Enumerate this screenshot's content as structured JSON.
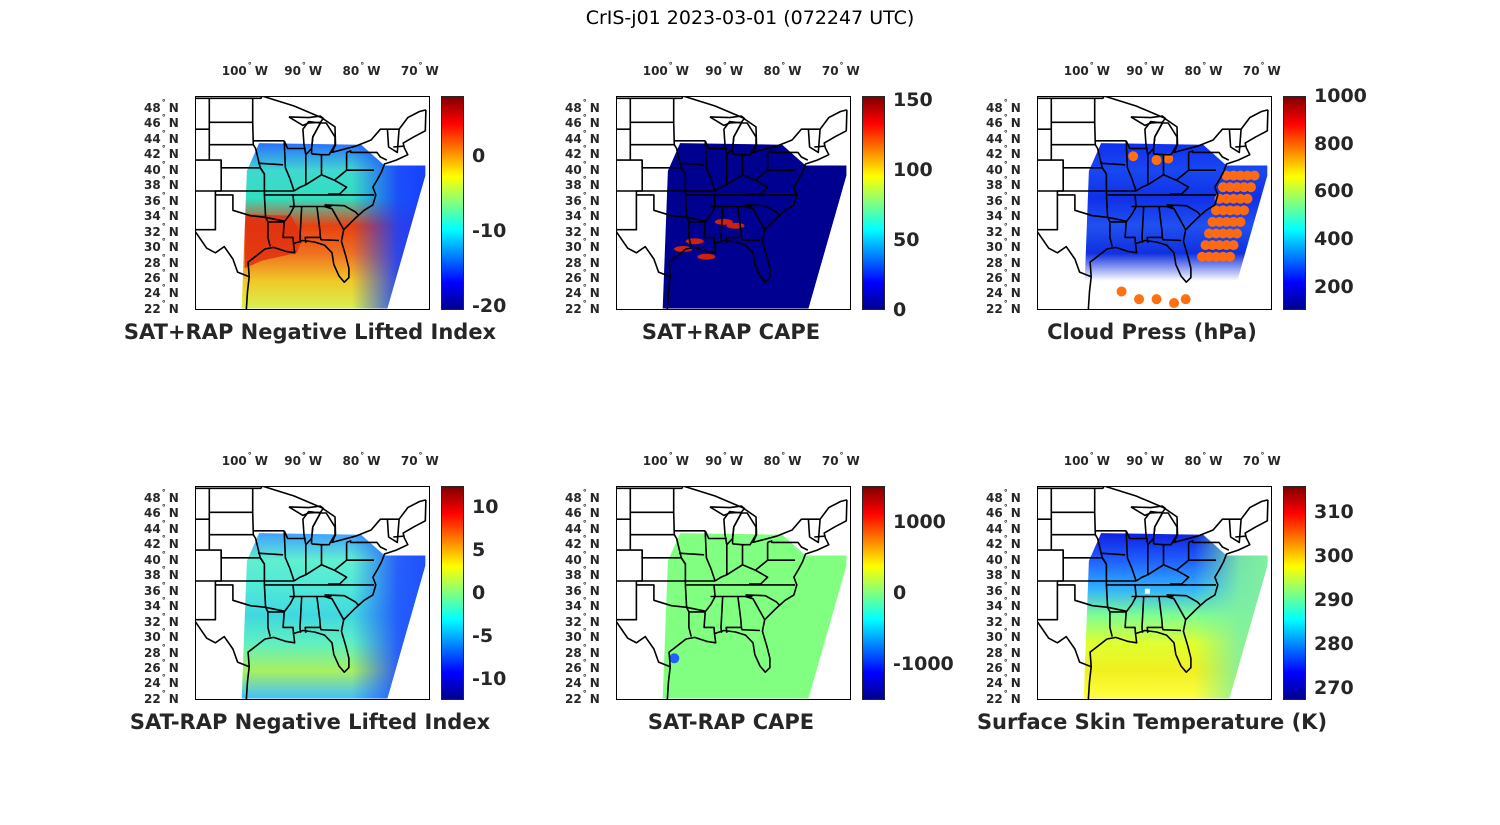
{
  "figure_title": "CrIS-j01 2023-03-01 (072247 UTC)",
  "lon_ticks": [
    {
      "value": -100,
      "label": "100",
      "hemi": "W"
    },
    {
      "value": -90,
      "label": "90",
      "hemi": "W"
    },
    {
      "value": -80,
      "label": "80",
      "hemi": "W"
    },
    {
      "value": -70,
      "label": "70",
      "hemi": "W"
    }
  ],
  "lat_ticks": [
    {
      "value": 48,
      "label": "48",
      "hemi": "N"
    },
    {
      "value": 46,
      "label": "46",
      "hemi": "N"
    },
    {
      "value": 44,
      "label": "44",
      "hemi": "N"
    },
    {
      "value": 42,
      "label": "42",
      "hemi": "N"
    },
    {
      "value": 40,
      "label": "40",
      "hemi": "N"
    },
    {
      "value": 38,
      "label": "38",
      "hemi": "N"
    },
    {
      "value": 36,
      "label": "36",
      "hemi": "N"
    },
    {
      "value": 34,
      "label": "34",
      "hemi": "N"
    },
    {
      "value": 32,
      "label": "32",
      "hemi": "N"
    },
    {
      "value": 30,
      "label": "30",
      "hemi": "N"
    },
    {
      "value": 28,
      "label": "28",
      "hemi": "N"
    },
    {
      "value": 26,
      "label": "26",
      "hemi": "N"
    },
    {
      "value": 24,
      "label": "24",
      "hemi": "N"
    },
    {
      "value": 22,
      "label": "22",
      "hemi": "N"
    }
  ],
  "colormap": [
    "#00008f",
    "#0000ff",
    "#0080ff",
    "#00ffff",
    "#80ff80",
    "#ffff00",
    "#ff8000",
    "#ff0000",
    "#800000"
  ],
  "chart_data": [
    {
      "type": "map",
      "title": "SAT+RAP Negative Lifted Index",
      "clim": [
        -20.5,
        7.9
      ],
      "cticks": [
        0,
        -10,
        -20
      ],
      "swath_colors": [
        "#2a70ff",
        "#40d8d0",
        "#30e0c0",
        "#e84010",
        "#f07020",
        "#f0c828",
        "#d8f050"
      ],
      "east_color": "#1840ff"
    },
    {
      "type": "map",
      "title": "SAT+RAP CAPE",
      "clim": [
        0,
        153
      ],
      "cticks": [
        150,
        100,
        50,
        0
      ],
      "swath_colors": [
        "#000090",
        "#000090",
        "#000090",
        "#000090",
        "#000090",
        "#000090",
        "#000090"
      ],
      "east_color": "#000090"
    },
    {
      "type": "map",
      "title": "Cloud Press (hPa)",
      "clim": [
        103,
        1000
      ],
      "cticks": [
        1000,
        800,
        600,
        400,
        200
      ],
      "swath_colors": [
        "#1030f0",
        "#1848f0",
        "#1030e8",
        "#2050f0",
        "#1030e0",
        "#ffffff",
        "#ffffff"
      ],
      "east_color": "#ff7010"
    },
    {
      "type": "map",
      "title": "SAT-RAP Negative Lifted Index",
      "clim": [
        -12.4,
        12.4
      ],
      "cticks": [
        10,
        5,
        0,
        -5,
        -10
      ],
      "swath_colors": [
        "#40a0ff",
        "#60f0d0",
        "#50e8d8",
        "#40d8e0",
        "#60f0c0",
        "#a8f060",
        "#40c0ff"
      ],
      "east_color": "#2050ff"
    },
    {
      "type": "map",
      "title": "SAT-RAP CAPE",
      "clim": [
        -1507,
        1507
      ],
      "cticks": [
        1000,
        0,
        -1000
      ],
      "swath_colors": [
        "#80ff80",
        "#80ff80",
        "#80ff80",
        "#80ff80",
        "#80ff80",
        "#80ff80",
        "#80ff80"
      ],
      "east_color": "#80ff80"
    },
    {
      "type": "map",
      "title": "Surface Skin Temperature (K)",
      "clim": [
        267.3,
        315.9
      ],
      "cticks": [
        310,
        300,
        290,
        280,
        270
      ],
      "swath_colors": [
        "#1020e0",
        "#2060ff",
        "#30b0ff",
        "#80ff90",
        "#e0ff30",
        "#f0f020",
        "#ffff40"
      ],
      "east_color": "#80f0a0"
    }
  ]
}
